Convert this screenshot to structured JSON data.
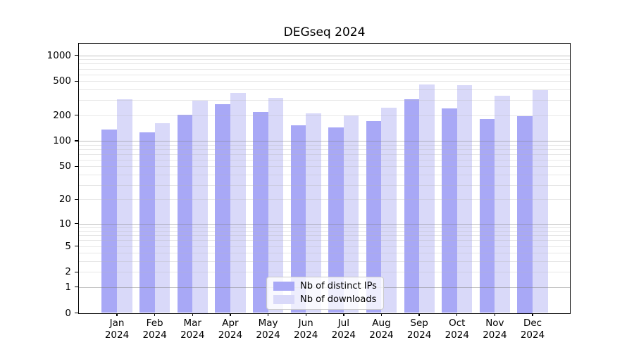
{
  "chart_data": {
    "type": "bar",
    "title": "DEGseq 2024",
    "categories": [
      "Jan",
      "Feb",
      "Mar",
      "Apr",
      "May",
      "Jun",
      "Jul",
      "Aug",
      "Sep",
      "Oct",
      "Nov",
      "Dec"
    ],
    "xtick_year": "2024",
    "series": [
      {
        "name": "Nb of distinct IPs",
        "color": "#a8a8f6",
        "values": [
          135,
          125,
          203,
          268,
          219,
          152,
          143,
          171,
          306,
          240,
          180,
          195
        ]
      },
      {
        "name": "Nb of downloads",
        "color": "#d9d9f9",
        "values": [
          306,
          160,
          296,
          365,
          319,
          212,
          197,
          245,
          455,
          446,
          340,
          390
        ]
      }
    ],
    "yticks": [
      0,
      1,
      2,
      5,
      10,
      20,
      50,
      100,
      200,
      500,
      1000
    ],
    "ylim": [
      0,
      1370
    ],
    "yscale": "log1p",
    "grid": {
      "major_at": [
        1,
        10,
        100,
        1000
      ],
      "major_color": "rgba(130,130,130,0.5)",
      "minor_color": "rgba(180,180,180,0.32)"
    },
    "legend": {
      "position": "lower center"
    }
  }
}
